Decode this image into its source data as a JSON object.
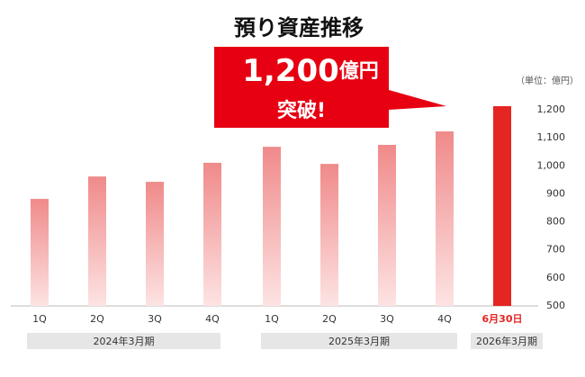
{
  "chart_data": {
    "type": "bar",
    "title": "預り資産推移",
    "unit_label": "（単位：億円）",
    "callout": {
      "amount": "1,200",
      "unit": "億円",
      "line2": "突破!"
    },
    "categories": [
      "1Q",
      "2Q",
      "3Q",
      "4Q",
      "1Q",
      "2Q",
      "3Q",
      "4Q",
      "6月30日"
    ],
    "values": [
      882,
      962,
      943,
      1011,
      1068,
      1007,
      1075,
      1123,
      1213
    ],
    "colors": [
      "#f08a8a",
      "#f08a8a",
      "#f08a8a",
      "#f08a8a",
      "#f08a8a",
      "#f08a8a",
      "#f08a8a",
      "#f08a8a",
      "#e52521"
    ],
    "groups": [
      "2024年3月期",
      "2025年3月期",
      "2026年3月期"
    ],
    "ylim": [
      500,
      1250
    ],
    "yticks": [
      500,
      600,
      700,
      800,
      900,
      {
        "value": 1000,
        "label": "1,000"
      },
      {
        "value": 1100,
        "label": "1,100"
      },
      {
        "value": 1200,
        "label": "1,200"
      }
    ],
    "grid": false
  }
}
